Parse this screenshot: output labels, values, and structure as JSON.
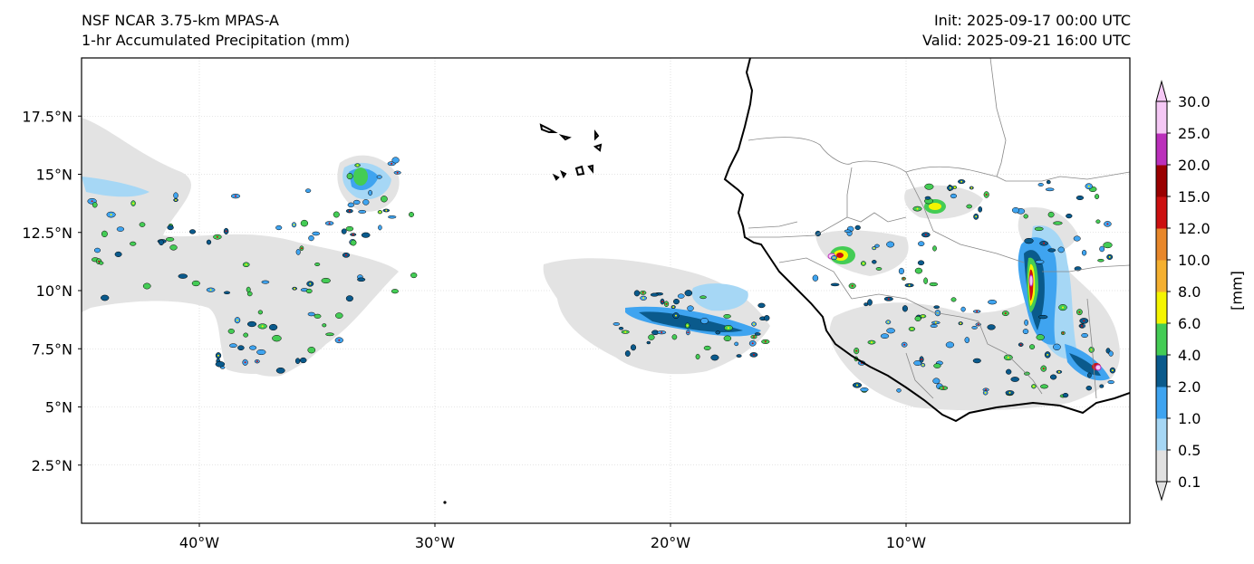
{
  "header": {
    "model": "NSF NCAR 3.75-km MPAS-A",
    "field": "1-hr Accumulated Precipitation (mm)",
    "init": "Init: 2025-09-17 00:00 UTC",
    "valid": "Valid: 2025-09-21 16:00 UTC"
  },
  "map": {
    "extent_lon": [
      -45,
      -0.5
    ],
    "extent_lat": [
      0,
      20
    ],
    "lat_ticks": [
      {
        "value": 2.5,
        "label": "2.5°N"
      },
      {
        "value": 5,
        "label": "5°N"
      },
      {
        "value": 7.5,
        "label": "7.5°N"
      },
      {
        "value": 10,
        "label": "10°N"
      },
      {
        "value": 12.5,
        "label": "12.5°N"
      },
      {
        "value": 15,
        "label": "15°N"
      },
      {
        "value": 17.5,
        "label": "17.5°N"
      }
    ],
    "lon_ticks": [
      {
        "value": -40,
        "label": "40°W"
      },
      {
        "value": -30,
        "label": "30°W"
      },
      {
        "value": -20,
        "label": "20°W"
      },
      {
        "value": -10,
        "label": "10°W"
      }
    ],
    "grid": true,
    "features": [
      "coastline",
      "country-borders",
      "precipitation-shading"
    ]
  },
  "colorbar": {
    "unit_label": "[mm]",
    "extend": "both",
    "levels": [
      "0.1",
      "0.5",
      "1.0",
      "2.0",
      "4.0",
      "6.0",
      "8.0",
      "10.0",
      "12.0",
      "15.0",
      "20.0",
      "25.0",
      "30.0"
    ],
    "colors": [
      "#e1e1e1",
      "#a6d7f5",
      "#3fa4f0",
      "#0a5a8c",
      "#44cc55",
      "#f5f500",
      "#f5b030",
      "#e8872a",
      "#cc1010",
      "#9a0000",
      "#bb30bb",
      "#f5c8f5"
    ]
  }
}
